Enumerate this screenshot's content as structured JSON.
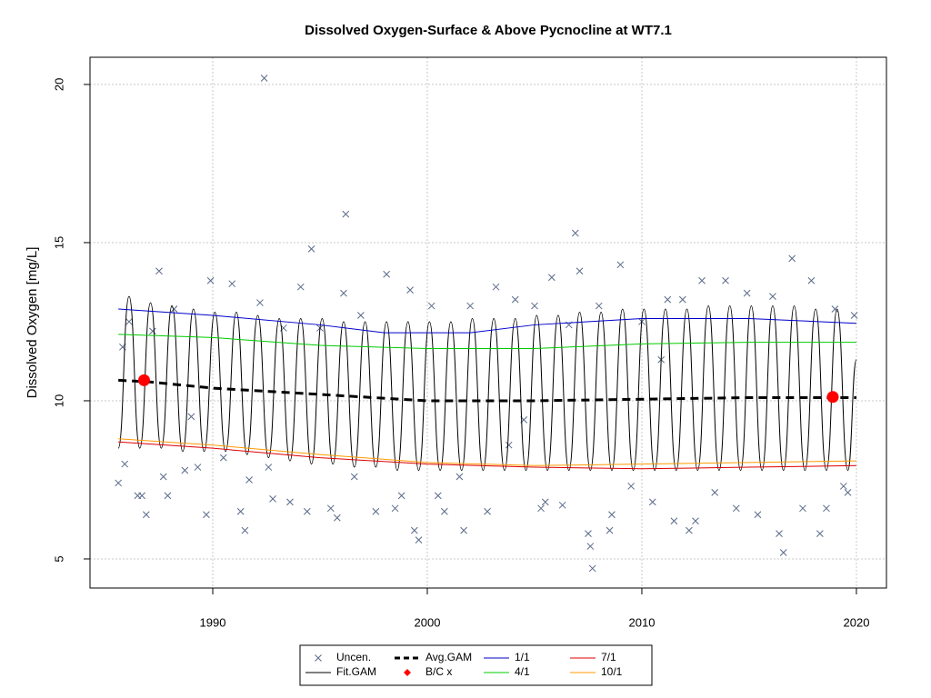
{
  "chart_data": {
    "type": "line",
    "title": "Dissolved Oxygen-Surface & Above Pycnocline at WT7.1",
    "y_label": "Dissolved Oxygen [mg/L]",
    "xlim": [
      1984.28,
      2021.4
    ],
    "xticks": [
      1990,
      2000,
      2010,
      2020
    ],
    "ylim": [
      4.08,
      20.86
    ],
    "yticks": [
      5,
      10,
      15,
      20
    ],
    "grid": true,
    "legend": "bottom",
    "series": [
      {
        "name": "Uncen.",
        "color": "#5a6a8a",
        "mark": "x",
        "x": [
          1985.6,
          1985.8,
          1985.9,
          1986.1,
          1986.5,
          1986.7,
          1986.9,
          1987.2,
          1987.5,
          1987.7,
          1987.9,
          1988.2,
          1988.7,
          1989.0,
          1989.3,
          1989.7,
          1989.9,
          1990.5,
          1990.9,
          1991.3,
          1991.5,
          1991.7,
          1992.2,
          1992.4,
          1992.6,
          1992.8,
          1993.3,
          1993.6,
          1994.1,
          1994.4,
          1994.6,
          1995.0,
          1995.5,
          1995.8,
          1996.1,
          1996.2,
          1996.6,
          1996.9,
          1997.6,
          1998.1,
          1998.5,
          1998.8,
          1999.2,
          1999.4,
          1999.6,
          2000.2,
          2000.5,
          2000.8,
          2001.5,
          2001.7,
          2002.0,
          2002.8,
          2003.2,
          2003.8,
          2004.1,
          2004.5,
          2005.0,
          2005.3,
          2005.5,
          2005.8,
          2006.3,
          2006.6,
          2006.9,
          2007.1,
          2007.5,
          2007.6,
          2007.7,
          2008.0,
          2008.5,
          2008.6,
          2009.0,
          2009.5,
          2010.0,
          2010.5,
          2010.9,
          2011.2,
          2011.5,
          2011.9,
          2012.2,
          2012.5,
          2012.8,
          2013.4,
          2013.9,
          2014.4,
          2014.9,
          2015.4,
          2016.1,
          2016.4,
          2016.6,
          2017.0,
          2017.5,
          2017.9,
          2018.3,
          2018.6,
          2019.0,
          2019.4,
          2019.6,
          2019.9
        ],
        "values": [
          7.4,
          11.7,
          8.0,
          12.5,
          7.0,
          7.0,
          6.4,
          12.2,
          14.1,
          7.6,
          7.0,
          12.9,
          7.8,
          9.5,
          7.9,
          6.4,
          13.8,
          8.2,
          13.7,
          6.5,
          5.9,
          7.5,
          13.1,
          20.2,
          7.9,
          6.9,
          12.3,
          6.8,
          13.6,
          6.5,
          14.8,
          12.3,
          6.6,
          6.3,
          13.4,
          15.9,
          7.6,
          12.7,
          6.5,
          14.0,
          6.6,
          7.0,
          13.5,
          5.9,
          5.6,
          13.0,
          7.0,
          6.5,
          7.6,
          5.9,
          13.0,
          6.5,
          13.6,
          8.6,
          13.2,
          9.4,
          13.0,
          6.6,
          6.8,
          13.9,
          6.7,
          12.4,
          15.3,
          14.1,
          5.8,
          5.4,
          4.7,
          13.0,
          5.9,
          6.4,
          14.3,
          7.3,
          12.5,
          6.8,
          11.3,
          13.2,
          6.2,
          13.2,
          5.9,
          6.2,
          13.8,
          7.1,
          13.8,
          6.6,
          13.4,
          6.4,
          13.3,
          5.8,
          5.2,
          14.5,
          6.6,
          13.8,
          5.8,
          6.6,
          12.9,
          7.3,
          7.1,
          12.7
        ]
      },
      {
        "name": "Fit.GAM",
        "color": "#000000",
        "mark": "wave",
        "x": [
          1985.6,
          1986.1,
          1986.6,
          1987.1,
          1987.6,
          1988.1,
          1988.6,
          1989.1,
          1989.6,
          1990.1,
          1990.6,
          1991.1,
          1991.6,
          1992.1,
          1992.6,
          1993.1,
          1993.6,
          1994.1,
          1994.6,
          1995.1,
          1995.6,
          1996.1,
          1996.6,
          1997.1,
          1997.6,
          1998.1,
          1998.6,
          1999.1,
          1999.6,
          2000.1,
          2000.6,
          2001.1,
          2001.6,
          2002.1,
          2002.6,
          2003.1,
          2003.6,
          2004.1,
          2004.6,
          2005.1,
          2005.6,
          2006.1,
          2006.6,
          2007.1,
          2007.6,
          2008.1,
          2008.6,
          2009.1,
          2009.6,
          2010.1,
          2010.6,
          2011.1,
          2011.6,
          2012.1,
          2012.6,
          2013.1,
          2013.6,
          2014.1,
          2014.6,
          2015.1,
          2015.6,
          2016.1,
          2016.6,
          2017.1,
          2017.6,
          2018.1,
          2018.6,
          2019.1,
          2019.6,
          2020.0
        ],
        "values": [
          8.5,
          13.3,
          8.5,
          13.1,
          8.5,
          13.0,
          8.4,
          12.9,
          8.4,
          12.8,
          8.4,
          12.8,
          8.3,
          12.7,
          8.2,
          12.6,
          8.1,
          12.6,
          8.0,
          12.6,
          8.0,
          12.5,
          7.9,
          12.5,
          7.9,
          12.5,
          7.8,
          12.5,
          7.8,
          12.5,
          7.8,
          12.5,
          7.8,
          12.6,
          7.8,
          12.6,
          7.8,
          12.6,
          7.8,
          12.7,
          7.8,
          12.7,
          7.8,
          12.8,
          7.8,
          12.8,
          7.8,
          12.9,
          7.8,
          12.9,
          7.8,
          12.9,
          7.8,
          12.9,
          7.8,
          13.0,
          7.8,
          13.0,
          7.8,
          13.0,
          7.8,
          13.0,
          7.8,
          13.0,
          7.8,
          12.9,
          7.8,
          12.9,
          7.8,
          11.3
        ]
      },
      {
        "name": "Avg.GAM",
        "color": "#000000",
        "mark": "dashed",
        "x": [
          1985.6,
          1987,
          1990,
          1995,
          2000,
          2005,
          2010,
          2015,
          2020
        ],
        "values": [
          10.65,
          10.6,
          10.4,
          10.2,
          10.0,
          10.0,
          10.05,
          10.1,
          10.1
        ]
      },
      {
        "name": "B/C x",
        "color": "#ff0000",
        "mark": "point",
        "x": [
          1986.8,
          2018.9
        ],
        "values": [
          10.65,
          10.12
        ]
      },
      {
        "name": "1/1",
        "color": "#0000cc",
        "mark": "line",
        "x": [
          1985.6,
          1990,
          1995,
          1998,
          2002,
          2005,
          2010,
          2015,
          2020
        ],
        "values": [
          12.9,
          12.7,
          12.4,
          12.15,
          12.15,
          12.4,
          12.6,
          12.6,
          12.45
        ]
      },
      {
        "name": "4/1",
        "color": "#00cc00",
        "mark": "line",
        "x": [
          1985.6,
          1990,
          1995,
          2000,
          2005,
          2010,
          2015,
          2020
        ],
        "values": [
          12.1,
          12.0,
          11.75,
          11.65,
          11.65,
          11.8,
          11.85,
          11.85
        ]
      },
      {
        "name": "7/1",
        "color": "#dd0000",
        "mark": "line",
        "x": [
          1985.6,
          1990,
          1995,
          2000,
          2005,
          2010,
          2015,
          2020
        ],
        "values": [
          8.7,
          8.5,
          8.2,
          8.0,
          7.9,
          7.85,
          7.9,
          7.95
        ]
      },
      {
        "name": "10/1",
        "color": "#ff9900",
        "mark": "line",
        "x": [
          1985.6,
          1990,
          1995,
          2000,
          2005,
          2010,
          2015,
          2020
        ],
        "values": [
          8.8,
          8.6,
          8.3,
          8.05,
          7.95,
          8.0,
          8.05,
          8.1
        ]
      }
    ]
  }
}
